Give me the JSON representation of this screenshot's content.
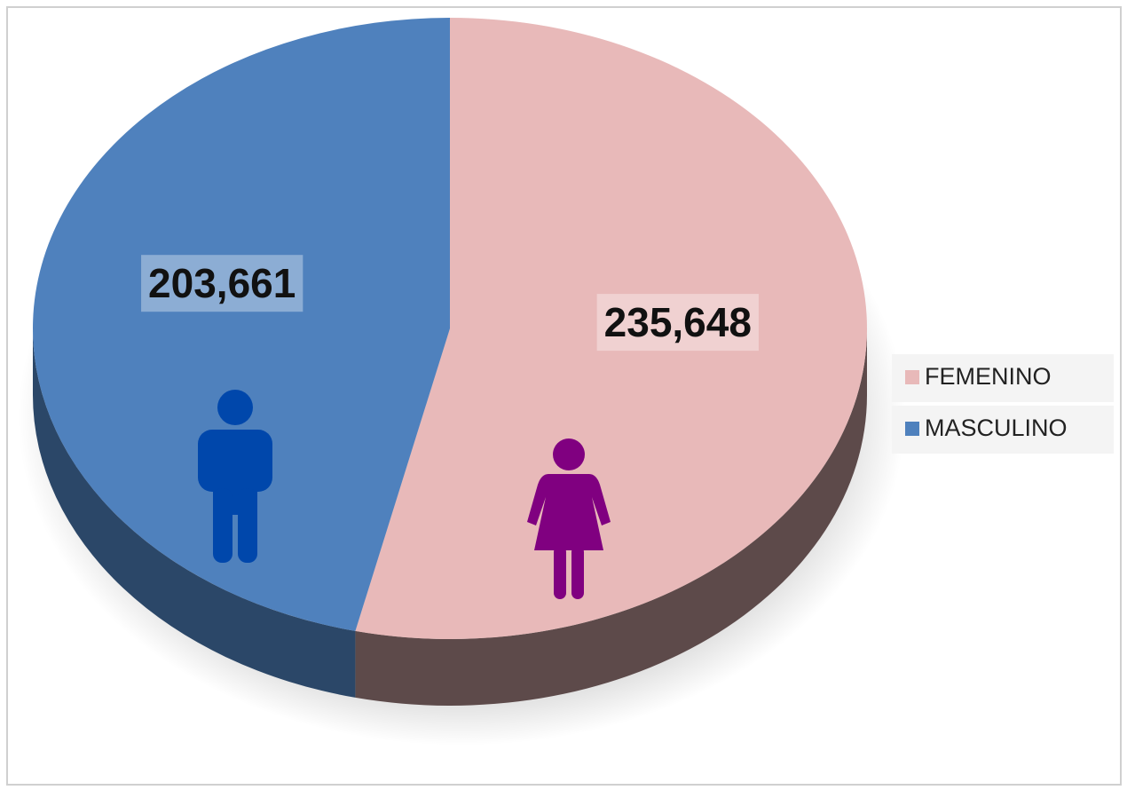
{
  "chart_data": {
    "type": "pie",
    "categories": [
      "FEMENINO",
      "MASCULINO"
    ],
    "values": [
      235648,
      203661
    ],
    "value_labels": [
      "235,648",
      "203,661"
    ],
    "colors": [
      "#e8b9b9",
      "#4f81bd"
    ],
    "legend": "right"
  }
}
